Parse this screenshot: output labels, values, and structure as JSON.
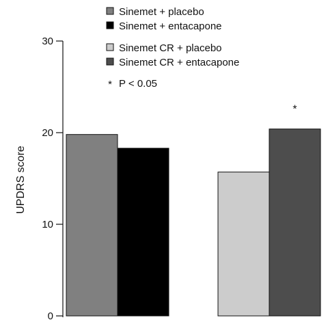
{
  "chart_data": {
    "type": "bar",
    "title": "",
    "xlabel": "",
    "ylabel": "UPDRS score",
    "ylim": [
      0,
      30
    ],
    "yticks": [
      0,
      10,
      20,
      30
    ],
    "grid": false,
    "legend_position": "top-center",
    "groups": [
      {
        "bars": [
          {
            "series": "Sinemet + placebo",
            "value": 19.8
          },
          {
            "series": "Sinemet + entacapone",
            "value": 18.3
          }
        ]
      },
      {
        "bars": [
          {
            "series": "Sinemet CR + placebo",
            "value": 15.7
          },
          {
            "series": "Sinemet CR + entacapone",
            "value": 20.4,
            "annotation": "*"
          }
        ]
      }
    ],
    "series": [
      {
        "name": "Sinemet + placebo",
        "color": "#808080"
      },
      {
        "name": "Sinemet + entacapone",
        "color": "#000000"
      },
      {
        "name": "Sinemet CR + placebo",
        "color": "#cccccc"
      },
      {
        "name": "Sinemet CR + entacapone",
        "color": "#4d4d4d"
      }
    ],
    "legend_note": {
      "symbol": "*",
      "text": "P < 0.05"
    }
  }
}
